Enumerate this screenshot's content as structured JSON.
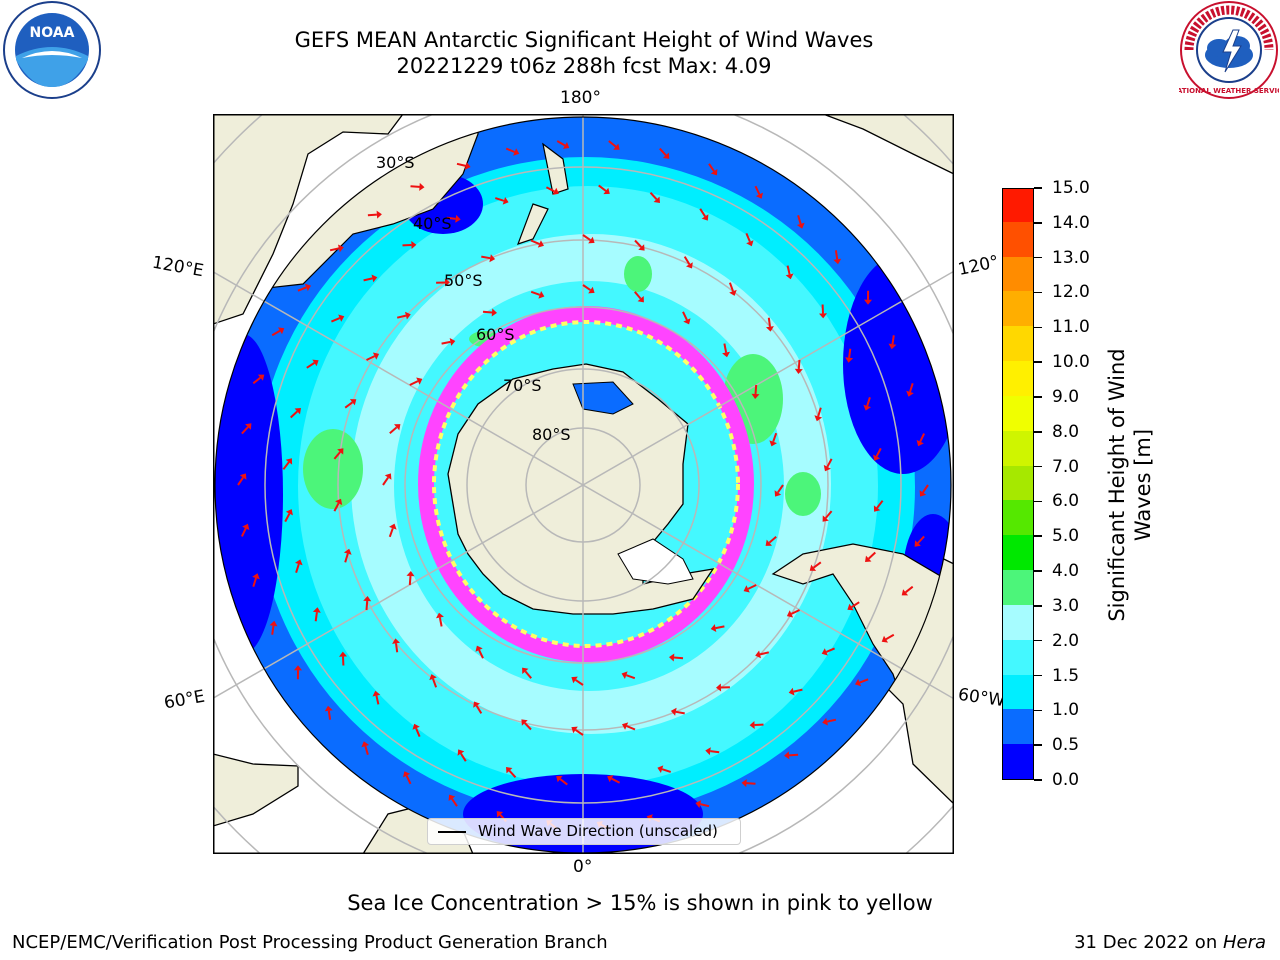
{
  "header": {
    "title_line1": "GEFS MEAN Antarctic Significant Height of Wind Waves",
    "title_line2": "20221229 t06z 288h fcst   Max: 4.09"
  },
  "map": {
    "projection": "south-polar-stereographic",
    "longitude_labels": [
      "180°",
      "120°E",
      "120°",
      "60°E",
      "60°W",
      "0°"
    ],
    "latitude_labels": [
      "30°S",
      "40°S",
      "50°S",
      "60°S",
      "70°S",
      "80°S"
    ],
    "colors": {
      "land": "#efeeda",
      "ocean_outside": "#ffffff",
      "grid": "#b8b8b8",
      "arrow": "#ee1111",
      "ice_low": "#ff44ff",
      "ice_high": "#ffff66"
    },
    "legend_label": "Wind Wave Direction (unscaled)"
  },
  "colorbar": {
    "title_line1": "Significant Height of Wind",
    "title_line2": "Waves [m]",
    "ticks": [
      "0.0",
      "0.5",
      "1.0",
      "1.5",
      "2.0",
      "3.0",
      "4.0",
      "5.0",
      "6.0",
      "7.0",
      "8.0",
      "9.0",
      "10.0",
      "11.0",
      "12.0",
      "13.0",
      "14.0",
      "15.0"
    ],
    "segment_colors": [
      "#0000ff",
      "#0a6cff",
      "#00eeff",
      "#44f8ff",
      "#a6fcff",
      "#4cf57a",
      "#00e800",
      "#55e800",
      "#a6e800",
      "#cff500",
      "#f0ff00",
      "#fff000",
      "#ffd800",
      "#ffae00",
      "#ff8c00",
      "#ff5000",
      "#ff1a00"
    ]
  },
  "notes": {
    "ice_note": "Sea Ice Concentration > 15% is shown in pink to yellow"
  },
  "footer": {
    "left": "NCEP/EMC/Verification Post Processing Product Generation Branch",
    "right_prefix": "31 Dec 2022 on ",
    "right_host": "Hera"
  },
  "logos": {
    "noaa_text": "NOAA",
    "nws_text": "NATIONAL WEATHER SERVICE"
  }
}
